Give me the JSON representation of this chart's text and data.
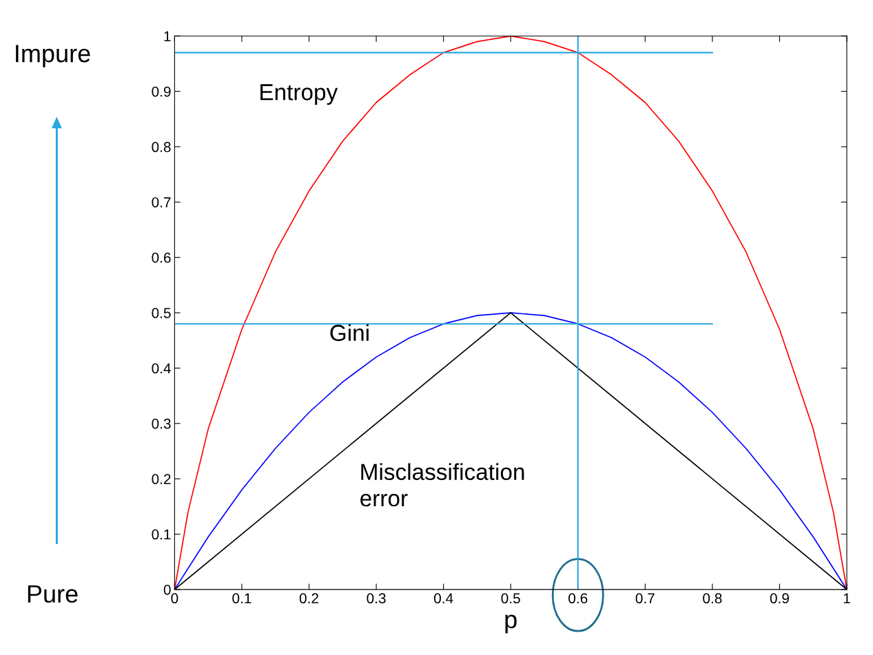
{
  "chart_data": {
    "type": "line",
    "xlabel": "p",
    "series": [
      {
        "name": "Entropy",
        "color": "#ff0000",
        "x": [
          0,
          0.02,
          0.05,
          0.1,
          0.15,
          0.2,
          0.25,
          0.3,
          0.35,
          0.4,
          0.45,
          0.5,
          0.55,
          0.6,
          0.65,
          0.7,
          0.75,
          0.8,
          0.85,
          0.9,
          0.95,
          0.98,
          1
        ],
        "values": [
          0,
          0.14,
          0.29,
          0.47,
          0.61,
          0.72,
          0.81,
          0.88,
          0.93,
          0.97,
          0.99,
          1.0,
          0.99,
          0.97,
          0.93,
          0.88,
          0.81,
          0.72,
          0.61,
          0.47,
          0.29,
          0.14,
          0
        ]
      },
      {
        "name": "Gini",
        "color": "#0000ff",
        "x": [
          0,
          0.05,
          0.1,
          0.15,
          0.2,
          0.25,
          0.3,
          0.35,
          0.4,
          0.45,
          0.5,
          0.55,
          0.6,
          0.65,
          0.7,
          0.75,
          0.8,
          0.85,
          0.9,
          0.95,
          1
        ],
        "values": [
          0,
          0.095,
          0.18,
          0.255,
          0.32,
          0.375,
          0.42,
          0.455,
          0.48,
          0.495,
          0.5,
          0.495,
          0.48,
          0.455,
          0.42,
          0.375,
          0.32,
          0.255,
          0.18,
          0.095,
          0
        ]
      },
      {
        "name": "Misclassification error",
        "color": "#000000",
        "x": [
          0,
          0.5,
          1
        ],
        "values": [
          0,
          0.5,
          0
        ]
      }
    ],
    "xlim": [
      0,
      1
    ],
    "ylim": [
      0,
      1
    ],
    "xticks": [
      0,
      0.1,
      0.2,
      0.3,
      0.4,
      0.5,
      0.6,
      0.7,
      0.8,
      0.9,
      1
    ],
    "yticks": [
      0,
      0.1,
      0.2,
      0.3,
      0.4,
      0.5,
      0.6,
      0.7,
      0.8,
      0.9,
      1
    ],
    "grid": false,
    "legend": false,
    "ref_lines": [
      {
        "axis": "y",
        "value": 0.97,
        "color": "#29a8e0"
      },
      {
        "axis": "y",
        "value": 0.48,
        "color": "#29a8e0"
      },
      {
        "axis": "x",
        "value": 0.6,
        "color": "#29a8e0"
      }
    ],
    "annotations": [
      "Impure",
      "Pure"
    ]
  }
}
